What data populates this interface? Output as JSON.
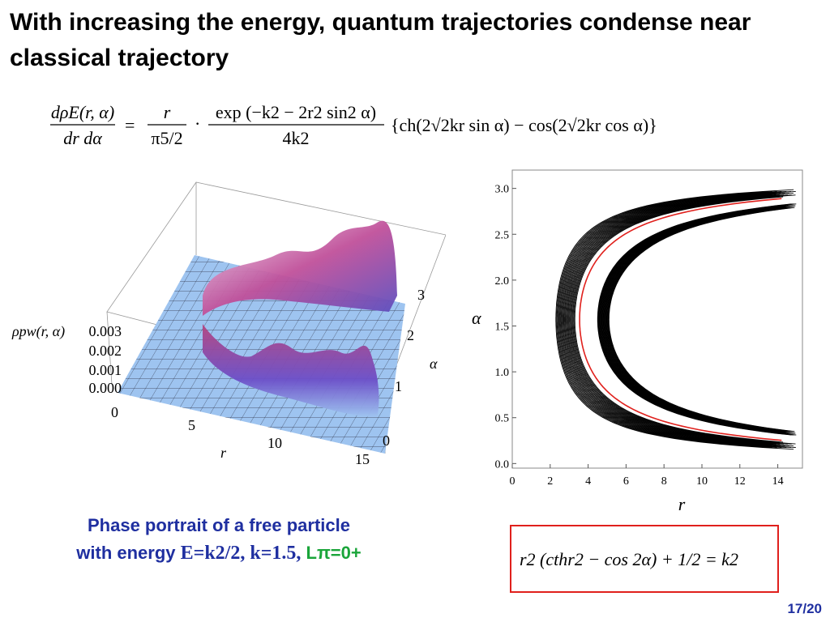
{
  "slide": {
    "title": "With increasing the energy, quantum trajectories condense near classical trajectory",
    "page_number": "17/20"
  },
  "formula_main": {
    "lhs_num": "dρE(r, α)",
    "lhs_den": "dr dα",
    "rhs_frac1_num": "r",
    "rhs_frac1_den": "π5/2",
    "rhs_frac2_num": "exp (−k2 − 2r2 sin2 α)",
    "rhs_frac2_den": "4k2",
    "bracket": "{ch(2√2kr sin α) − cos(2√2kr cos α)}"
  },
  "surface_plot": {
    "z_label": "ρpw(r, α)",
    "z_ticks": [
      "0.000",
      "0.001",
      "0.002",
      "0.003"
    ],
    "r_label": "r",
    "r_ticks": [
      "0",
      "5",
      "10",
      "15"
    ],
    "alpha_label": "α",
    "alpha_ticks": [
      "0",
      "1",
      "2",
      "3"
    ],
    "colors": {
      "base": "#9ec4f0",
      "ridge_low": "#5a4fc0",
      "ridge_high": "#c0509a",
      "peak": "#e7c8e0"
    }
  },
  "caption": {
    "line1": "Phase portrait of a free particle",
    "line2_prefix": "with energy ",
    "energy": "E=k2/2, k=1.5,",
    "l_pi": "Lπ=0+"
  },
  "formula_box": {
    "text": "r2 (cthr2 − cos 2α) + 1/2 = k2"
  },
  "chart_data": {
    "type": "line",
    "xlabel": "r",
    "ylabel": "α",
    "xlim": [
      0,
      15.3
    ],
    "ylim": [
      -0.05,
      3.2
    ],
    "x_ticks": [
      "0",
      "2",
      "4",
      "6",
      "8",
      "10",
      "12",
      "14"
    ],
    "y_ticks": [
      "0.0",
      "0.5",
      "1.0",
      "1.5",
      "2.0",
      "2.5",
      "3.0"
    ],
    "classical_curve": {
      "color": "#e0201c",
      "k": 1.5,
      "r_min": 3.55,
      "r_max": 15.0
    },
    "quantum_bands": [
      {
        "r_min": 2.3,
        "band_width": 1.0,
        "color": "#000000"
      },
      {
        "r_min": 4.5,
        "band_width": 0.6,
        "color": "#000000"
      }
    ]
  }
}
